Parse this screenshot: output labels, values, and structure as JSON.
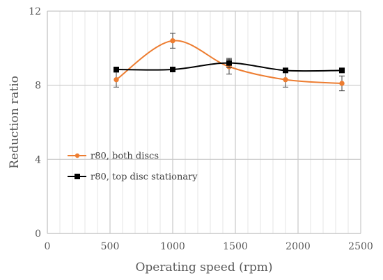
{
  "chart_data": {
    "type": "line",
    "xlabel": "Operating speed (rpm)",
    "ylabel": "Reduction ratio",
    "xlim": [
      0,
      2500
    ],
    "ylim": [
      0,
      12
    ],
    "x_ticks": [
      0,
      500,
      1000,
      1500,
      2000,
      2500
    ],
    "y_ticks": [
      0,
      4,
      8,
      12
    ],
    "x_tick_labels": [
      "0",
      "500",
      "1000",
      "1500",
      "2000",
      "2500"
    ],
    "y_tick_labels": [
      "0",
      "4",
      "8",
      "12"
    ],
    "x_minor_step": 100,
    "grid": true,
    "legend_position": "left-center",
    "series": [
      {
        "name": "r80, both discs",
        "color": "#ED7D31",
        "marker": "circle",
        "smooth": true,
        "x": [
          550,
          1000,
          1450,
          1900,
          2350
        ],
        "y": [
          8.3,
          10.4,
          9.0,
          8.3,
          8.1
        ],
        "error": [
          0.4,
          0.4,
          0.4,
          0.4,
          0.4
        ]
      },
      {
        "name": "r80, top disc stationary",
        "color": "#000000",
        "marker": "square",
        "smooth": true,
        "x": [
          550,
          1000,
          1450,
          1900,
          2350
        ],
        "y": [
          8.85,
          8.85,
          9.2,
          8.8,
          8.8
        ],
        "error": [
          0,
          0,
          0.25,
          0,
          0
        ]
      }
    ]
  }
}
